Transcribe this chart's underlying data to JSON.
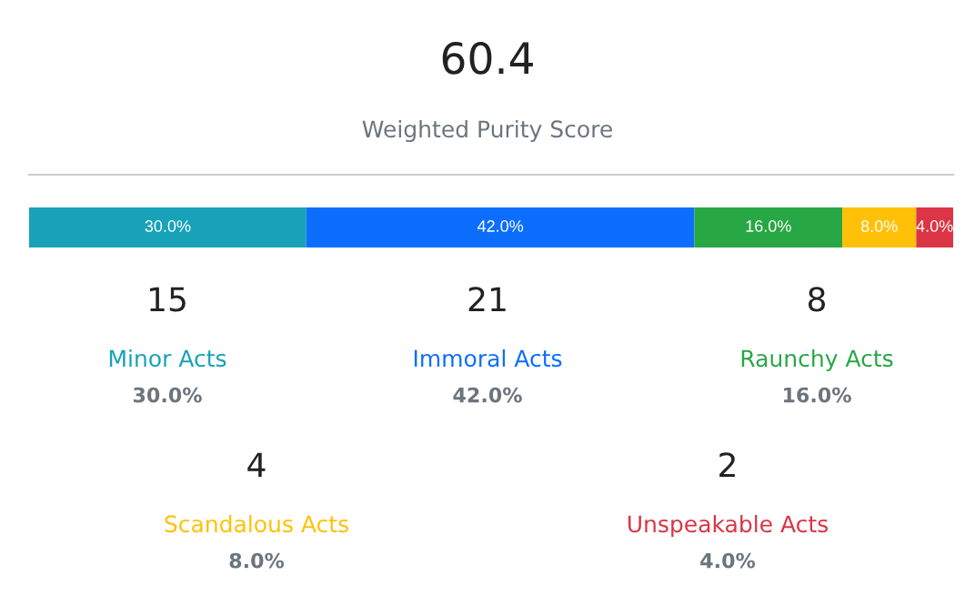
{
  "chart_data": {
    "type": "bar",
    "title": "60.4",
    "subtitle": "Weighted Purity Score",
    "orientation": "horizontal",
    "stacked": true,
    "categories": [
      null
    ],
    "series": [
      {
        "name": "Minor Acts",
        "color": "#17a2b8",
        "values": [
          30.0
        ],
        "value_labels": [
          "30.0%"
        ]
      },
      {
        "name": "Immoral Acts",
        "color": "#0d6efd",
        "values": [
          42.0
        ],
        "value_labels": [
          "42.0%"
        ]
      },
      {
        "name": "Raunchy Acts",
        "color": "#28a745",
        "values": [
          16.0
        ],
        "value_labels": [
          "16.0%"
        ]
      },
      {
        "name": "Scandalous Acts",
        "color": "#ffc107",
        "values": [
          8.0
        ],
        "value_labels": [
          "8.0%"
        ]
      },
      {
        "name": "Unspeakable Acts",
        "color": "#dc3545",
        "values": [
          4.0
        ],
        "value_labels": [
          "4.0%"
        ]
      }
    ],
    "annotations": [
      "15",
      "30.0%",
      "21",
      "42.0%",
      "8",
      "16.0%",
      "4",
      "8.0%",
      "2",
      "4.0%"
    ],
    "legend": false
  }
}
